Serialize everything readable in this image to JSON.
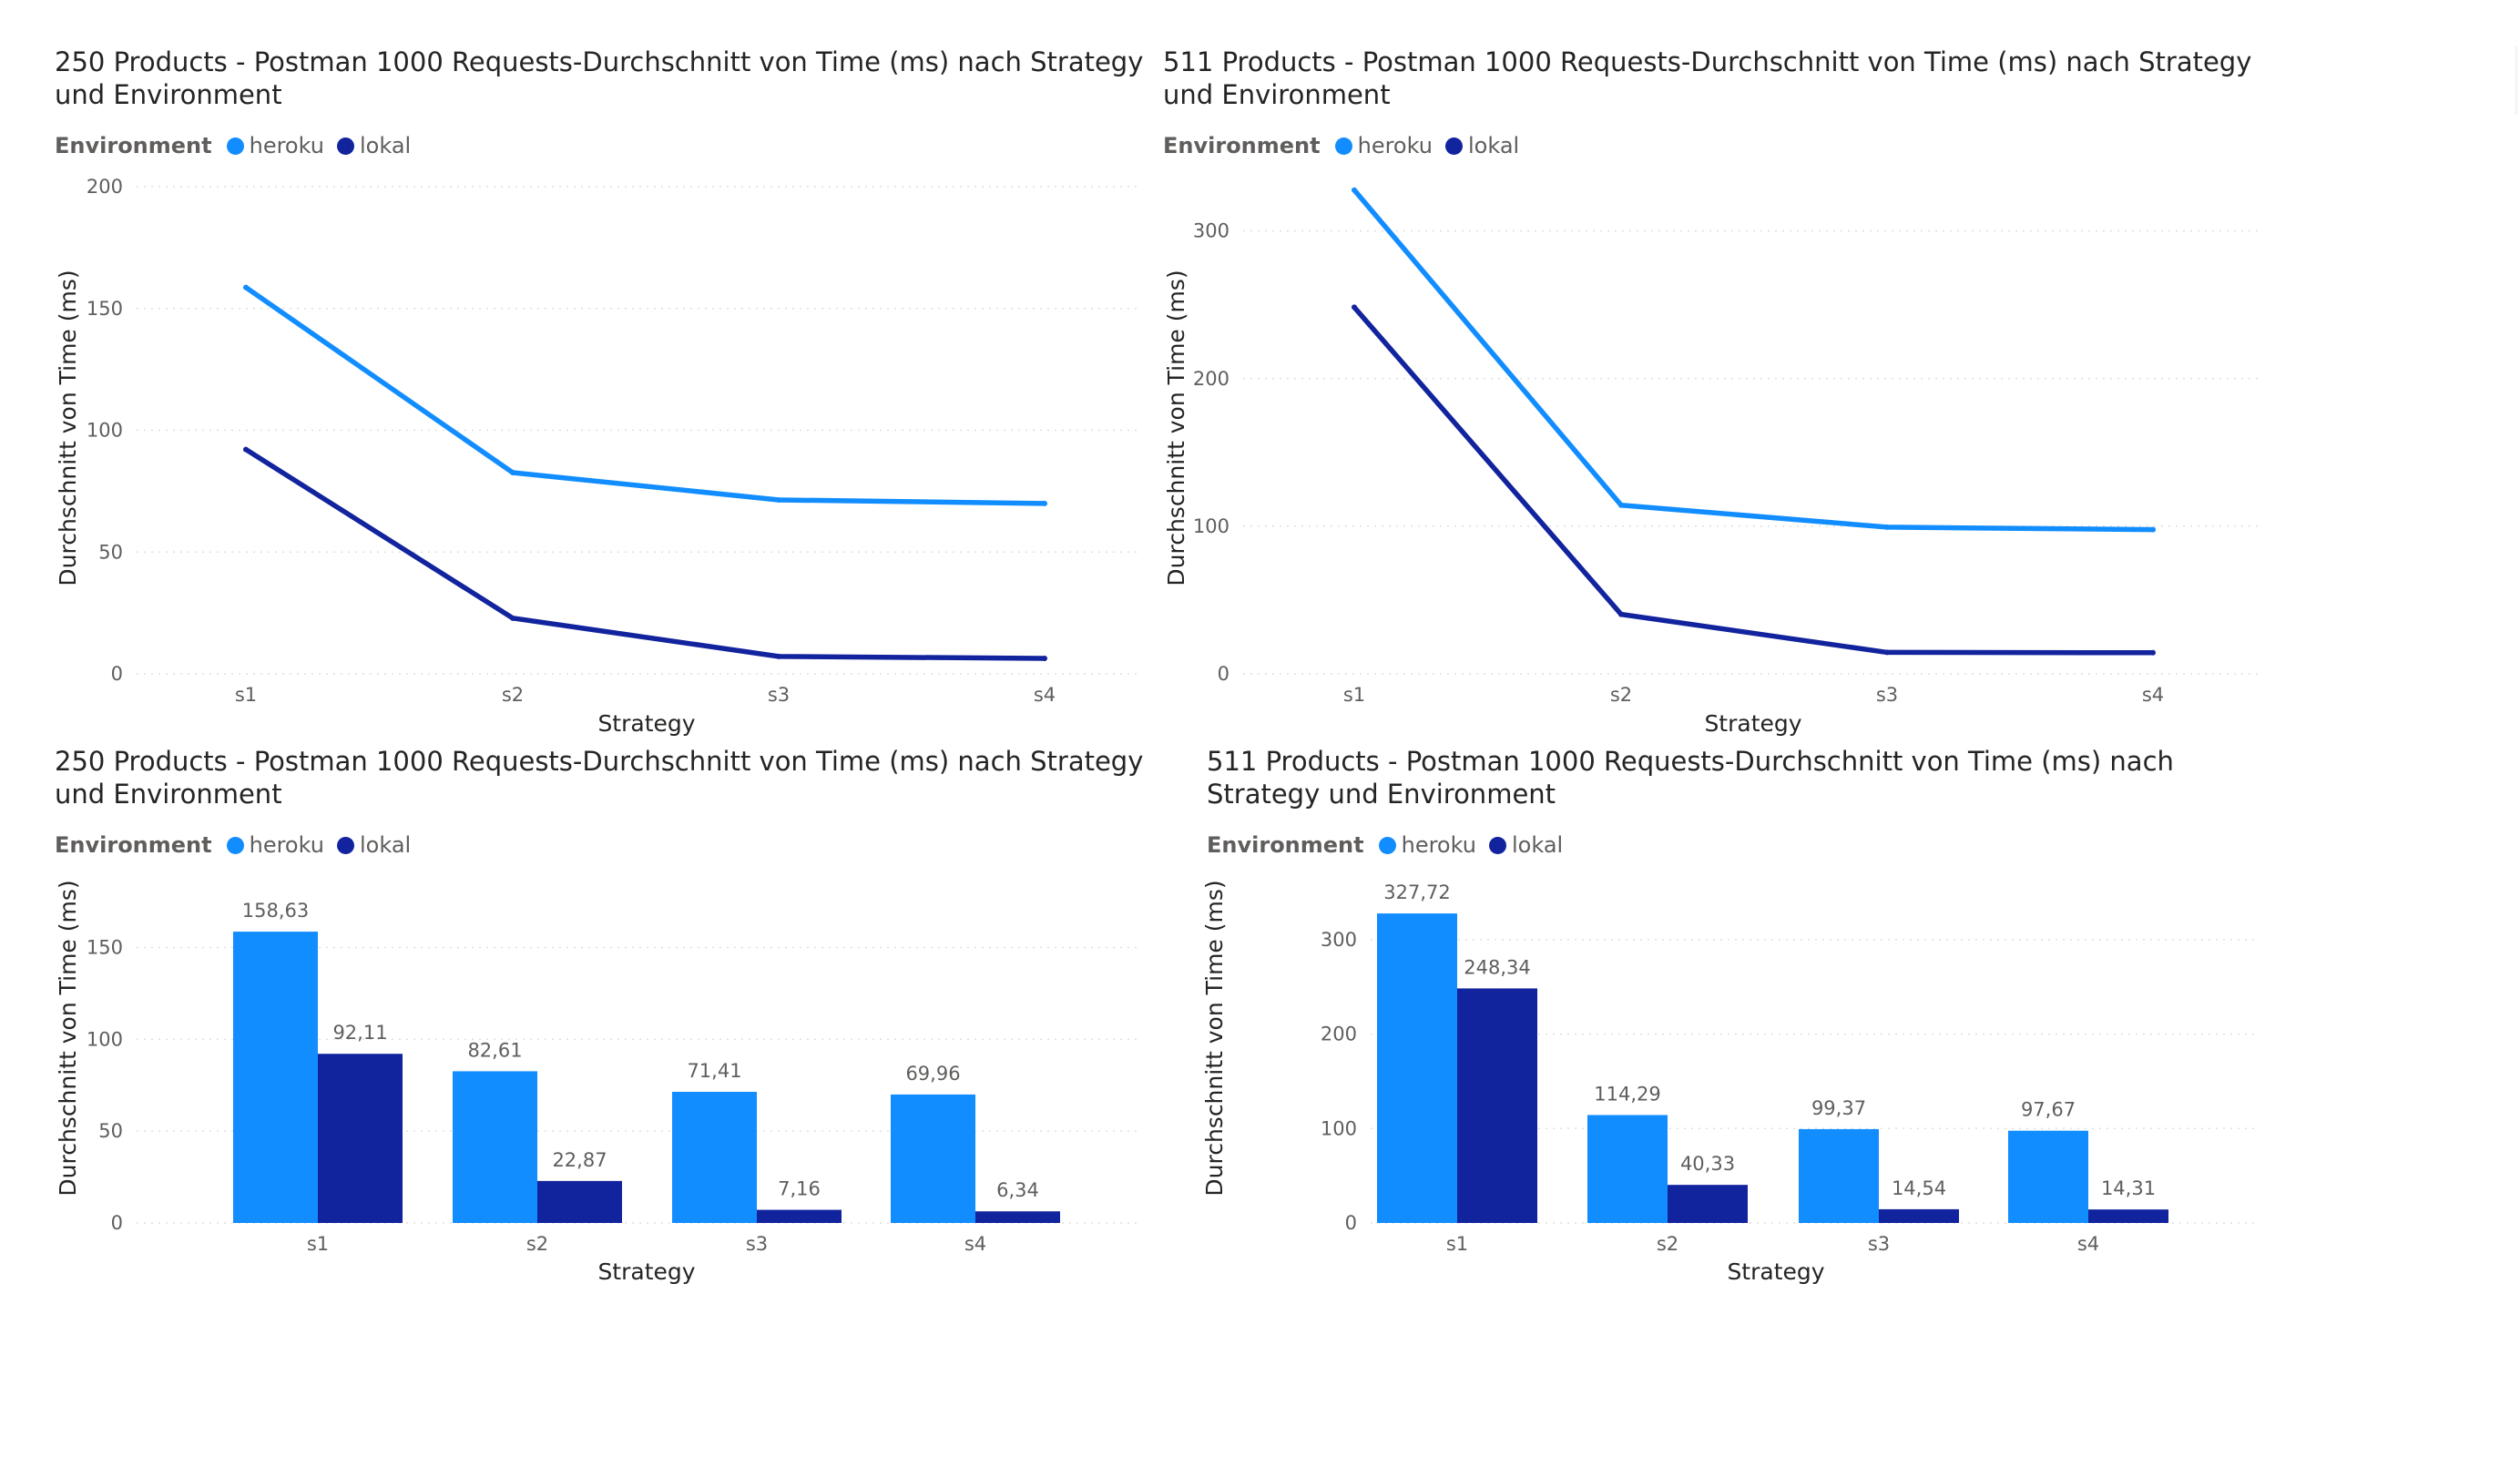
{
  "colors": {
    "heroku": "#118dff",
    "lokal": "#12239e"
  },
  "chart_data": [
    {
      "id": "c1",
      "type": "line",
      "title": "250 Products - Postman 1000 Requests-Durchschnitt von Time (ms) nach Strategy und Environment",
      "legend_title": "Environment",
      "xlabel": "Strategy",
      "ylabel": "Durchschnitt von Time (ms)",
      "categories": [
        "s1",
        "s2",
        "s3",
        "s4"
      ],
      "ylim": [
        0,
        200
      ],
      "yticks": [
        0,
        50,
        100,
        150,
        200
      ],
      "grid": true,
      "legend_position": "top-left",
      "series": [
        {
          "name": "heroku",
          "values": [
            158.63,
            82.61,
            71.41,
            69.96
          ]
        },
        {
          "name": "lokal",
          "values": [
            92.11,
            22.87,
            7.16,
            6.34
          ]
        }
      ]
    },
    {
      "id": "c2",
      "type": "line",
      "title": "511 Products - Postman 1000 Requests-Durchschnitt von Time (ms) nach Strategy und Environment",
      "legend_title": "Environment",
      "xlabel": "Strategy",
      "ylabel": "Durchschnitt von Time (ms)",
      "categories": [
        "s1",
        "s2",
        "s3",
        "s4"
      ],
      "ylim": [
        0,
        330
      ],
      "yticks": [
        0,
        100,
        200,
        300
      ],
      "grid": true,
      "legend_position": "top-left",
      "series": [
        {
          "name": "heroku",
          "values": [
            327.72,
            114.29,
            99.37,
            97.67
          ]
        },
        {
          "name": "lokal",
          "values": [
            248.34,
            40.33,
            14.54,
            14.31
          ]
        }
      ]
    },
    {
      "id": "c3",
      "type": "bar",
      "title": "250 Products - Postman 1000 Requests-Durchschnitt von Time (ms) nach Strategy und Environment",
      "legend_title": "Environment",
      "xlabel": "Strategy",
      "ylabel": "Durchschnitt von Time (ms)",
      "categories": [
        "s1",
        "s2",
        "s3",
        "s4"
      ],
      "ylim": [
        0,
        180
      ],
      "yticks": [
        0,
        50,
        100,
        150
      ],
      "grid": true,
      "legend_position": "top-left",
      "series": [
        {
          "name": "heroku",
          "values": [
            158.63,
            82.61,
            71.41,
            69.96
          ],
          "labels": [
            "158,63",
            "82,61",
            "71,41",
            "69,96"
          ]
        },
        {
          "name": "lokal",
          "values": [
            92.11,
            22.87,
            7.16,
            6.34
          ],
          "labels": [
            "92,11",
            "22,87",
            "7,16",
            "6,34"
          ]
        }
      ]
    },
    {
      "id": "c4",
      "type": "bar",
      "title": "511 Products - Postman 1000 Requests-Durchschnitt von Time (ms) nach Strategy und Environment",
      "legend_title": "Environment",
      "xlabel": "Strategy",
      "ylabel": "Durchschnitt von Time (ms)",
      "categories": [
        "s1",
        "s2",
        "s3",
        "s4"
      ],
      "ylim": [
        0,
        350
      ],
      "yticks": [
        0,
        100,
        200,
        300
      ],
      "grid": true,
      "legend_position": "top-left",
      "series": [
        {
          "name": "heroku",
          "values": [
            327.72,
            114.29,
            99.37,
            97.67
          ],
          "labels": [
            "327,72",
            "114,29",
            "99,37",
            "97,67"
          ]
        },
        {
          "name": "lokal",
          "values": [
            248.34,
            40.33,
            14.54,
            14.31
          ],
          "labels": [
            "248,34",
            "40,33",
            "14,54",
            "14,31"
          ]
        }
      ]
    }
  ]
}
